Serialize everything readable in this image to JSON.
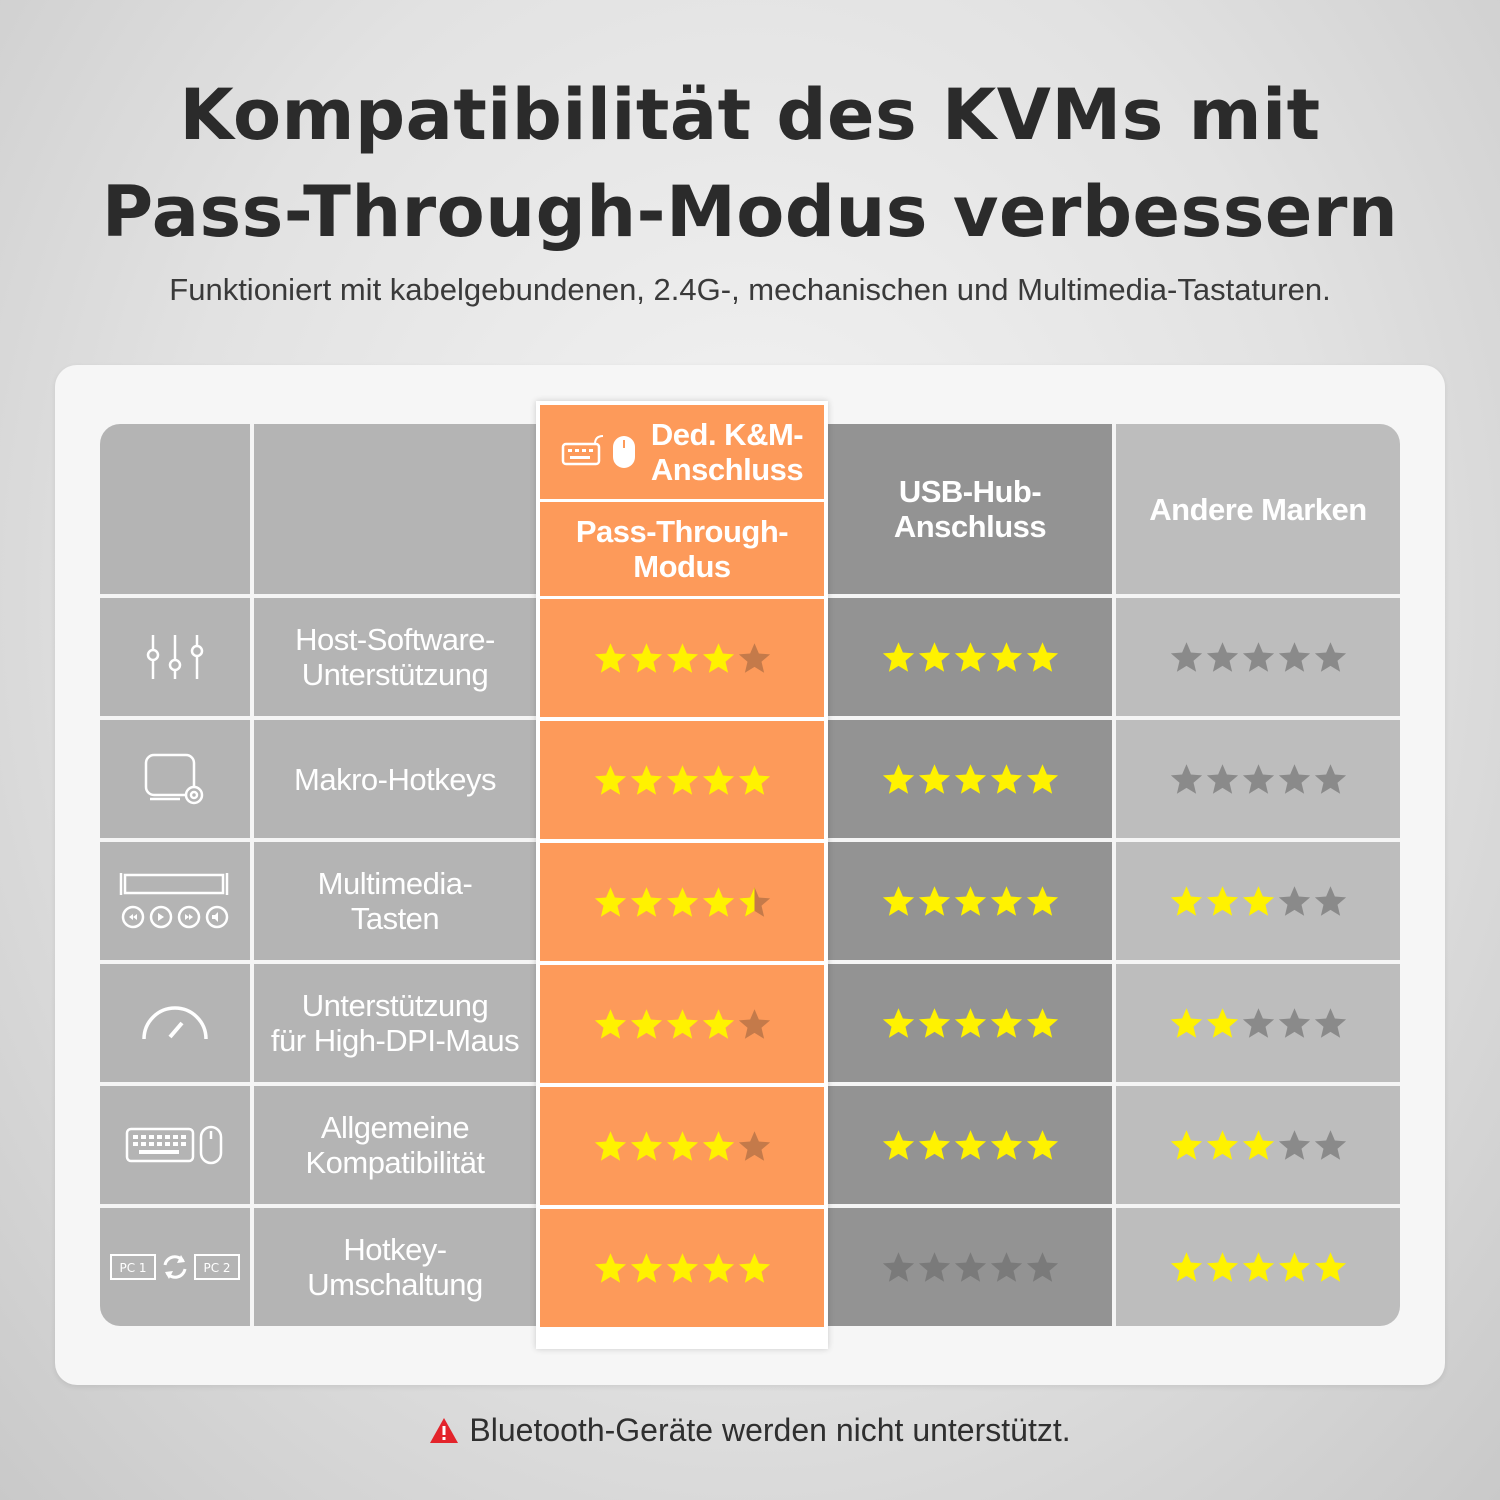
{
  "title_line1": "Kompatibilität des KVMs mit",
  "title_line2": "Pass-Through-Modus verbessern",
  "subtitle": "Funktioniert mit kabelgebundenen, 2.4G-, mechanischen und Multimedia-Tastaturen.",
  "columns": {
    "featured_top": "Ded. K&M-\nAnschluss",
    "featured_bottom": "Pass-Through-\nModus",
    "usb_hub": "USB-Hub-\nAnschluss",
    "other": "Andere Marken"
  },
  "rows": [
    {
      "icon": "sliders-icon",
      "label": "Host-Software-\nUnterstützung",
      "ratings": [
        4,
        5,
        0
      ]
    },
    {
      "icon": "macro-keyboard-gear-icon",
      "label": "Makro-Hotkeys",
      "ratings": [
        5,
        5,
        0
      ]
    },
    {
      "icon": "media-keys-icon",
      "label": "Multimedia-\nTasten",
      "ratings": [
        4.5,
        5,
        3
      ]
    },
    {
      "icon": "speedometer-icon",
      "label": "Unterstützung\nfür High-DPI-Maus",
      "ratings": [
        4,
        5,
        2
      ]
    },
    {
      "icon": "keyboard-mouse-icon",
      "label": "Allgemeine\nKompatibilität",
      "ratings": [
        4,
        5,
        3
      ]
    },
    {
      "icon": "pc-switch-icon",
      "label": "Hotkey-\nUmschaltung",
      "ratings": [
        5,
        0,
        5
      ]
    }
  ],
  "footer": "Bluetooth-Geräte werden nicht unterstützt.",
  "colors": {
    "accent": "#fd9a5a",
    "star_on": "#fff200",
    "star_off_orange": "#c47a4a",
    "star_off_gray": "#8a8a8a",
    "star_off_dark": "#7a7a7a"
  }
}
